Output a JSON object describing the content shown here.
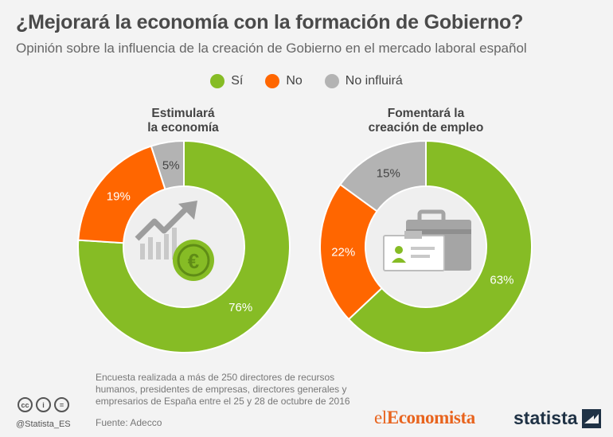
{
  "title": "¿Mejorará la economía con la formación de Gobierno?",
  "subtitle": "Opinión sobre la influencia de la creación de Gobierno en el mercado laboral español",
  "colors": {
    "si": "#86bc25",
    "no": "#ff6600",
    "no_influira": "#b3b3b3",
    "inner": "#efefef"
  },
  "chart_data": [
    {
      "type": "pie",
      "title_lines": [
        "Estimulará",
        "la economía"
      ],
      "categories": [
        "Sí",
        "No",
        "No influirá"
      ],
      "values": [
        76,
        19,
        5
      ],
      "labels": [
        "76%",
        "19%",
        "5%"
      ],
      "center_icon": "chart-euro-icon"
    },
    {
      "type": "pie",
      "title_lines": [
        "Fomentará la",
        "creación de empleo"
      ],
      "categories": [
        "Sí",
        "No",
        "No influirá"
      ],
      "values": [
        63,
        22,
        15
      ],
      "labels": [
        "63%",
        "22%",
        "15%"
      ],
      "center_icon": "briefcase-badge-icon"
    }
  ],
  "legend": [
    {
      "label": "Sí",
      "color": "#86bc25"
    },
    {
      "label": "No",
      "color": "#ff6600"
    },
    {
      "label": "No influirá",
      "color": "#b3b3b3"
    }
  ],
  "footnote": "Encuesta realizada a más de 250 directores de recursos humanos, presidentes de empresas, directores generales y empresarios de España entre el 25 y 28 de octubre de 2016",
  "source": "Fuente: Adecco",
  "handle": "@Statista_ES",
  "brand1_a": "el",
  "brand1_b": "Economista",
  "brand2": "statista"
}
